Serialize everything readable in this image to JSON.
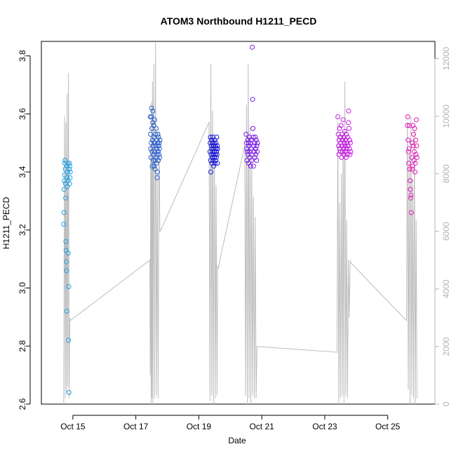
{
  "chart_data": {
    "type": "scatter",
    "title": "ATOM3 Northbound H1211_PECD",
    "xlabel": "Date",
    "ylabel": "H1211_PECD",
    "xlim": [
      "2022-10-14T00:00",
      "2022-10-26T12:00"
    ],
    "ylim": [
      2.6,
      3.85
    ],
    "xticks": [
      {
        "label": "Oct 15",
        "x": "2022-10-15"
      },
      {
        "label": "Oct 17",
        "x": "2022-10-17"
      },
      {
        "label": "Oct 19",
        "x": "2022-10-19"
      },
      {
        "label": "Oct 21",
        "x": "2022-10-21"
      },
      {
        "label": "Oct 23",
        "x": "2022-10-23"
      },
      {
        "label": "Oct 25",
        "x": "2022-10-25"
      }
    ],
    "yticks": [
      2.6,
      2.8,
      3.0,
      3.2,
      3.4,
      3.6,
      3.8
    ],
    "y2ticks": [
      0,
      2000,
      4000,
      6000,
      8000,
      10000,
      12000
    ],
    "y2lim": [
      0,
      12600
    ],
    "grid": false,
    "legend": "none",
    "colors": {
      "series_line": "#bdbdbd",
      "secondary_axis": "#b3b3b3"
    },
    "flights": [
      {
        "color": "#1fa0e6",
        "x": [
          "2022-10-14T17:00",
          "2022-10-14T17:10",
          "2022-10-14T17:20",
          "2022-10-14T17:30",
          "2022-10-14T17:40",
          "2022-10-14T17:50",
          "2022-10-14T18:00",
          "2022-10-14T18:10",
          "2022-10-14T18:20",
          "2022-10-14T18:30",
          "2022-10-14T18:40",
          "2022-10-14T18:50",
          "2022-10-14T19:00",
          "2022-10-14T19:10",
          "2022-10-14T19:20",
          "2022-10-14T19:30",
          "2022-10-14T19:40",
          "2022-10-14T19:50",
          "2022-10-14T20:00",
          "2022-10-14T20:10",
          "2022-10-14T20:20",
          "2022-10-14T20:30",
          "2022-10-14T20:40",
          "2022-10-14T20:50",
          "2022-10-14T21:00",
          "2022-10-14T21:10",
          "2022-10-14T21:20",
          "2022-10-14T21:30",
          "2022-10-14T21:40",
          "2022-10-14T21:50",
          "2022-10-14T22:00"
        ],
        "y": [
          3.22,
          3.26,
          3.34,
          3.37,
          3.39,
          3.43,
          3.44,
          3.41,
          3.36,
          3.31,
          3.16,
          3.13,
          3.09,
          3.06,
          2.92,
          3.42,
          3.38,
          3.35,
          3.4,
          3.43,
          3.37,
          3.12,
          2.82,
          3.005,
          2.64,
          3.41,
          3.43,
          3.36,
          3.42,
          3.38,
          3.4
        ]
      },
      {
        "color": "#2a5fd0",
        "x": [
          "2022-10-17T11:00",
          "2022-10-17T11:10",
          "2022-10-17T11:20",
          "2022-10-17T11:30",
          "2022-10-17T11:40",
          "2022-10-17T11:50",
          "2022-10-17T12:00",
          "2022-10-17T12:10",
          "2022-10-17T12:20",
          "2022-10-17T12:30",
          "2022-10-17T12:40",
          "2022-10-17T12:50",
          "2022-10-17T13:00",
          "2022-10-17T13:10",
          "2022-10-17T13:20",
          "2022-10-17T13:30",
          "2022-10-17T13:40",
          "2022-10-17T13:50",
          "2022-10-17T14:00",
          "2022-10-17T14:10",
          "2022-10-17T14:20",
          "2022-10-17T14:30",
          "2022-10-17T14:40",
          "2022-10-17T14:50",
          "2022-10-17T15:00",
          "2022-10-17T15:10",
          "2022-10-17T15:20",
          "2022-10-17T15:30",
          "2022-10-17T15:40",
          "2022-10-17T15:50",
          "2022-10-17T16:00",
          "2022-10-17T16:10",
          "2022-10-17T16:20",
          "2022-10-17T16:30",
          "2022-10-17T16:40",
          "2022-10-17T16:50",
          "2022-10-17T17:00",
          "2022-10-17T17:10",
          "2022-10-17T17:20",
          "2022-10-17T17:30",
          "2022-10-17T17:40",
          "2022-10-17T17:50",
          "2022-10-17T18:00",
          "2022-10-17T18:10",
          "2022-10-17T18:20"
        ],
        "y": [
          3.59,
          3.53,
          3.48,
          3.45,
          3.5,
          3.59,
          3.62,
          3.55,
          3.47,
          3.42,
          3.51,
          3.57,
          3.61,
          3.49,
          3.44,
          3.46,
          3.56,
          3.52,
          3.42,
          3.5,
          3.58,
          3.47,
          3.41,
          3.44,
          3.53,
          3.49,
          3.45,
          3.55,
          3.43,
          3.48,
          3.51,
          3.46,
          3.38,
          3.4,
          3.5,
          3.53,
          3.47,
          3.44,
          3.52,
          3.49,
          3.46,
          3.5,
          3.48,
          3.45,
          3.51
        ]
      },
      {
        "color": "#1a1ad6",
        "x": [
          "2022-10-19T08:30",
          "2022-10-19T08:40",
          "2022-10-19T08:50",
          "2022-10-19T09:00",
          "2022-10-19T09:10",
          "2022-10-19T09:20",
          "2022-10-19T09:30",
          "2022-10-19T09:40",
          "2022-10-19T09:50",
          "2022-10-19T10:00",
          "2022-10-19T10:10",
          "2022-10-19T10:20",
          "2022-10-19T10:30",
          "2022-10-19T10:40",
          "2022-10-19T10:50",
          "2022-10-19T11:00",
          "2022-10-19T11:10",
          "2022-10-19T11:20",
          "2022-10-19T11:30",
          "2022-10-19T11:40",
          "2022-10-19T11:50",
          "2022-10-19T12:00",
          "2022-10-19T12:10",
          "2022-10-19T12:20",
          "2022-10-19T12:30",
          "2022-10-19T12:40",
          "2022-10-19T12:50",
          "2022-10-19T13:00",
          "2022-10-19T13:10",
          "2022-10-19T13:20",
          "2022-10-19T13:30",
          "2022-10-19T13:40",
          "2022-10-19T13:50",
          "2022-10-19T14:00",
          "2022-10-19T14:10",
          "2022-10-19T14:20"
        ],
        "y": [
          3.47,
          3.5,
          3.52,
          3.44,
          3.4,
          3.46,
          3.49,
          3.51,
          3.48,
          3.43,
          3.45,
          3.5,
          3.47,
          3.52,
          3.44,
          3.46,
          3.49,
          3.42,
          3.48,
          3.5,
          3.45,
          3.47,
          3.51,
          3.43,
          3.49,
          3.46,
          3.44,
          3.5,
          3.48,
          3.45,
          3.47,
          3.52,
          3.46,
          3.49,
          3.43,
          3.48
        ]
      },
      {
        "color": "#7a1ae6",
        "x": [
          "2022-10-20T12:00",
          "2022-10-20T12:15",
          "2022-10-20T12:30",
          "2022-10-20T12:45",
          "2022-10-20T13:00",
          "2022-10-20T13:15",
          "2022-10-20T13:30",
          "2022-10-20T13:45",
          "2022-10-20T14:00",
          "2022-10-20T14:15",
          "2022-10-20T14:30",
          "2022-10-20T14:45",
          "2022-10-20T15:00",
          "2022-10-20T15:15",
          "2022-10-20T15:30",
          "2022-10-20T15:45",
          "2022-10-20T16:00",
          "2022-10-20T16:15",
          "2022-10-20T16:30",
          "2022-10-20T16:45",
          "2022-10-20T17:00",
          "2022-10-20T17:15",
          "2022-10-20T17:30",
          "2022-10-20T17:45",
          "2022-10-20T18:00",
          "2022-10-20T18:15",
          "2022-10-20T18:30",
          "2022-10-20T18:45",
          "2022-10-20T19:00",
          "2022-10-20T19:15",
          "2022-10-20T19:30",
          "2022-10-20T19:45",
          "2022-10-20T20:00",
          "2022-10-20T20:15",
          "2022-10-20T20:30",
          "2022-10-20T20:45"
        ],
        "y": [
          3.53,
          3.5,
          3.48,
          3.44,
          3.47,
          3.51,
          3.46,
          3.5,
          3.43,
          3.49,
          3.52,
          3.45,
          3.47,
          3.5,
          3.42,
          3.48,
          3.51,
          3.44,
          3.46,
          3.83,
          3.65,
          3.55,
          3.52,
          3.42,
          3.49,
          3.47,
          3.5,
          3.45,
          3.52,
          3.48,
          3.46,
          3.51,
          3.44,
          3.49,
          3.47,
          3.5
        ]
      },
      {
        "color": "#c21ae0",
        "x": [
          "2022-10-23T10:00",
          "2022-10-23T10:15",
          "2022-10-23T10:30",
          "2022-10-23T10:45",
          "2022-10-23T11:00",
          "2022-10-23T11:15",
          "2022-10-23T11:30",
          "2022-10-23T11:45",
          "2022-10-23T12:00",
          "2022-10-23T12:15",
          "2022-10-23T12:30",
          "2022-10-23T12:45",
          "2022-10-23T13:00",
          "2022-10-23T13:15",
          "2022-10-23T13:30",
          "2022-10-23T13:45",
          "2022-10-23T14:00",
          "2022-10-23T14:15",
          "2022-10-23T14:30",
          "2022-10-23T14:45",
          "2022-10-23T15:00",
          "2022-10-23T15:15",
          "2022-10-23T15:30",
          "2022-10-23T15:45",
          "2022-10-23T16:00",
          "2022-10-23T16:15",
          "2022-10-23T16:30",
          "2022-10-23T16:45",
          "2022-10-23T17:00",
          "2022-10-23T17:15",
          "2022-10-23T17:30",
          "2022-10-23T17:45",
          "2022-10-23T18:00",
          "2022-10-23T18:15",
          "2022-10-23T18:30",
          "2022-10-23T18:45",
          "2022-10-23T19:00",
          "2022-10-23T19:15",
          "2022-10-23T19:30",
          "2022-10-23T19:45"
        ],
        "y": [
          3.59,
          3.53,
          3.49,
          3.46,
          3.51,
          3.55,
          3.48,
          3.52,
          3.47,
          3.5,
          3.56,
          3.45,
          3.49,
          3.53,
          3.51,
          3.47,
          3.58,
          3.48,
          3.52,
          3.46,
          3.5,
          3.54,
          3.49,
          3.47,
          3.51,
          3.45,
          3.53,
          3.48,
          3.5,
          3.46,
          3.52,
          3.49,
          3.57,
          3.61,
          3.55,
          3.48,
          3.51,
          3.46,
          3.5,
          3.47
        ]
      },
      {
        "color": "#e01ab6",
        "x": [
          "2022-10-25T15:00",
          "2022-10-25T15:15",
          "2022-10-25T15:30",
          "2022-10-25T15:45",
          "2022-10-25T16:00",
          "2022-10-25T16:15",
          "2022-10-25T16:30",
          "2022-10-25T16:45",
          "2022-10-25T17:00",
          "2022-10-25T17:15",
          "2022-10-25T17:30",
          "2022-10-25T17:45",
          "2022-10-25T18:00",
          "2022-10-25T18:15",
          "2022-10-25T18:30",
          "2022-10-25T18:45",
          "2022-10-25T19:00",
          "2022-10-25T19:15",
          "2022-10-25T19:30",
          "2022-10-25T19:45",
          "2022-10-25T20:00",
          "2022-10-25T20:15",
          "2022-10-25T20:30",
          "2022-10-25T20:45",
          "2022-10-25T21:00",
          "2022-10-25T21:15",
          "2022-10-25T21:30",
          "2022-10-25T21:45",
          "2022-10-25T22:00",
          "2022-10-25T22:15"
        ],
        "y": [
          3.56,
          3.59,
          3.51,
          3.47,
          3.43,
          3.48,
          3.56,
          3.41,
          3.37,
          3.34,
          3.31,
          3.32,
          3.26,
          3.45,
          3.5,
          3.41,
          3.42,
          3.56,
          3.49,
          3.53,
          3.44,
          3.47,
          3.55,
          3.4,
          3.43,
          3.51,
          3.46,
          3.58,
          3.49,
          3.45
        ]
      }
    ],
    "secondary_series": {
      "x": [
        "2022-10-14T17:00",
        "2022-10-14T17:40",
        "2022-10-14T18:10",
        "2022-10-14T18:40",
        "2022-10-14T19:10",
        "2022-10-14T19:40",
        "2022-10-14T20:10",
        "2022-10-14T20:40",
        "2022-10-14T21:10",
        "2022-10-14T21:40",
        "2022-10-14T22:00",
        "2022-10-17T10:40",
        "2022-10-17T11:00",
        "2022-10-17T11:20",
        "2022-10-17T11:40",
        "2022-10-17T12:00",
        "2022-10-17T12:20",
        "2022-10-17T12:40",
        "2022-10-17T13:00",
        "2022-10-17T13:40",
        "2022-10-17T14:20",
        "2022-10-17T15:00",
        "2022-10-17T15:40",
        "2022-10-17T16:20",
        "2022-10-17T17:00",
        "2022-10-17T17:40",
        "2022-10-17T18:20",
        "2022-10-17T18:40",
        "2022-10-19T07:50",
        "2022-10-19T08:30",
        "2022-10-19T09:10",
        "2022-10-19T09:50",
        "2022-10-19T10:30",
        "2022-10-19T11:10",
        "2022-10-19T11:50",
        "2022-10-19T12:30",
        "2022-10-19T13:10",
        "2022-10-19T13:50",
        "2022-10-19T14:20",
        "2022-10-19T14:40",
        "2022-10-20T11:00",
        "2022-10-20T11:40",
        "2022-10-20T12:20",
        "2022-10-20T13:00",
        "2022-10-20T13:40",
        "2022-10-20T14:20",
        "2022-10-20T15:00",
        "2022-10-20T15:40",
        "2022-10-20T16:20",
        "2022-10-20T17:00",
        "2022-10-20T17:40",
        "2022-10-20T18:20",
        "2022-10-20T19:00",
        "2022-10-20T19:40",
        "2022-10-20T20:20",
        "2022-10-20T21:00",
        "2022-10-23T09:20",
        "2022-10-23T10:00",
        "2022-10-23T10:40",
        "2022-10-23T11:20",
        "2022-10-23T12:00",
        "2022-10-23T12:40",
        "2022-10-23T13:20",
        "2022-10-23T14:00",
        "2022-10-23T14:40",
        "2022-10-23T15:20",
        "2022-10-23T16:00",
        "2022-10-23T16:40",
        "2022-10-23T17:20",
        "2022-10-23T18:00",
        "2022-10-23T18:40",
        "2022-10-23T19:20",
        "2022-10-23T20:00",
        "2022-10-25T14:20",
        "2022-10-25T15:00",
        "2022-10-25T15:40",
        "2022-10-25T16:20",
        "2022-10-25T17:00",
        "2022-10-25T17:40",
        "2022-10-25T18:20",
        "2022-10-25T19:00",
        "2022-10-25T19:40",
        "2022-10-25T20:20",
        "2022-10-25T21:00",
        "2022-10-25T21:40",
        "2022-10-25T22:20"
      ],
      "y": [
        0,
        10000,
        200,
        9800,
        400,
        10800,
        600,
        11500,
        200,
        3000,
        2900,
        5000,
        1000,
        9000,
        0,
        10500,
        200,
        11200,
        0,
        11800,
        200,
        12600,
        300,
        8000,
        200,
        9500,
        6000,
        6000,
        9800,
        100,
        11800,
        300,
        10200,
        0,
        9400,
        200,
        7600,
        300,
        4800,
        4700,
        9000,
        300,
        10400,
        0,
        11800,
        200,
        9600,
        0,
        8800,
        300,
        7200,
        200,
        6500,
        200,
        2000,
        2000,
        1800,
        9800,
        0,
        7000,
        200,
        8000,
        300,
        9500,
        0,
        11200,
        300,
        6400,
        200,
        5000,
        3000,
        5000,
        4900,
        2900,
        9800,
        500,
        8700,
        0,
        10000,
        300,
        7800,
        200,
        9500,
        0,
        6400,
        200
      ]
    }
  }
}
